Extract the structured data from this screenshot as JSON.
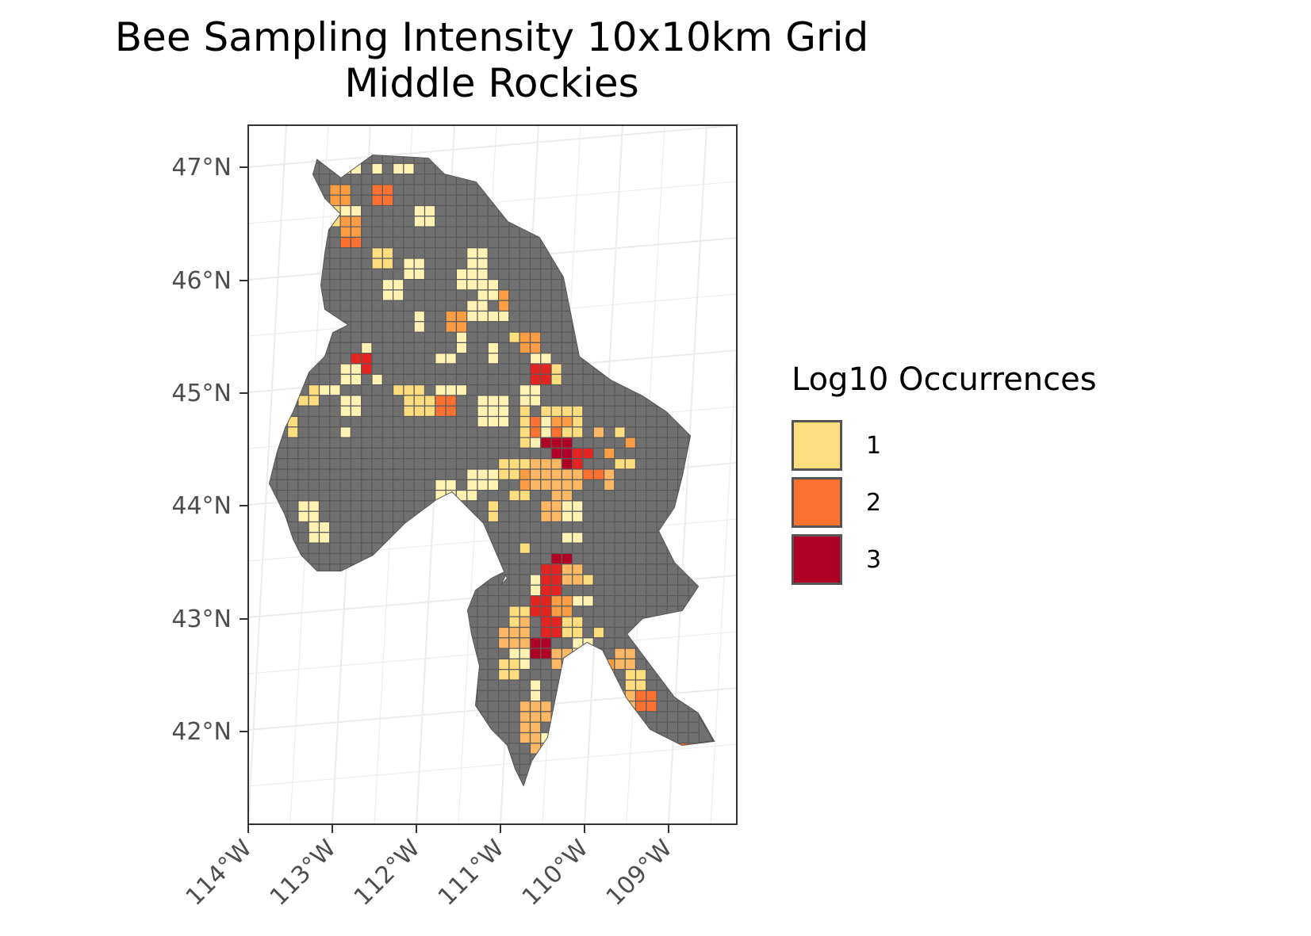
{
  "title": "Bee Sampling Intensity 10x10km Grid",
  "subtitle": "Middle Rockies",
  "axes": {
    "x_ticks": [
      "114°W",
      "113°W",
      "112°W",
      "111°W",
      "110°W",
      "109°W"
    ],
    "y_ticks": [
      "47°N",
      "46°N",
      "45°N",
      "44°N",
      "43°N",
      "42°N"
    ]
  },
  "legend": {
    "title": "Log10 Occurrences",
    "entries": [
      {
        "label": "1",
        "color": "#FEDD7F"
      },
      {
        "label": "2",
        "color": "#FD7130"
      },
      {
        "label": "3",
        "color": "#B10026"
      }
    ]
  },
  "colors": {
    "land": "#707070",
    "cell_border": "#5a5a5a",
    "graticule": "#ebebeb",
    "panel_border": "#333333",
    "level1_light": "#FFF2B2",
    "level1": "#FEDD7F",
    "level1_dark": "#FDB866",
    "level2_light": "#FD9D43",
    "level2": "#FD7130",
    "level3_light": "#E42420",
    "level3": "#B10026"
  }
}
